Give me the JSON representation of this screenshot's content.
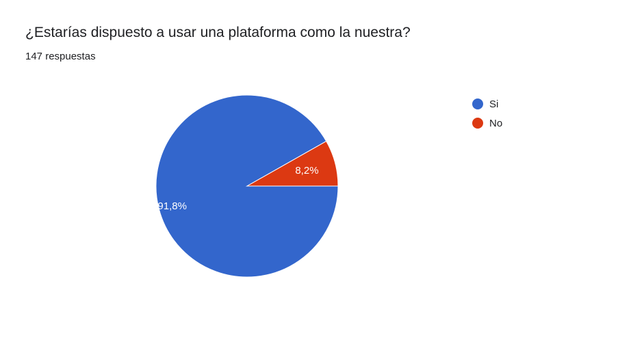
{
  "chart_data": {
    "type": "pie",
    "title": "¿Estarías dispuesto a usar una plataforma como la nuestra?",
    "subtitle": "147 respuestas",
    "categories": [
      "Si",
      "No"
    ],
    "values": [
      91.8,
      8.2
    ],
    "value_labels": [
      "91,8%",
      "8,2%"
    ],
    "colors": [
      "#3366cc",
      "#dc3912"
    ],
    "legend_position": "right"
  }
}
